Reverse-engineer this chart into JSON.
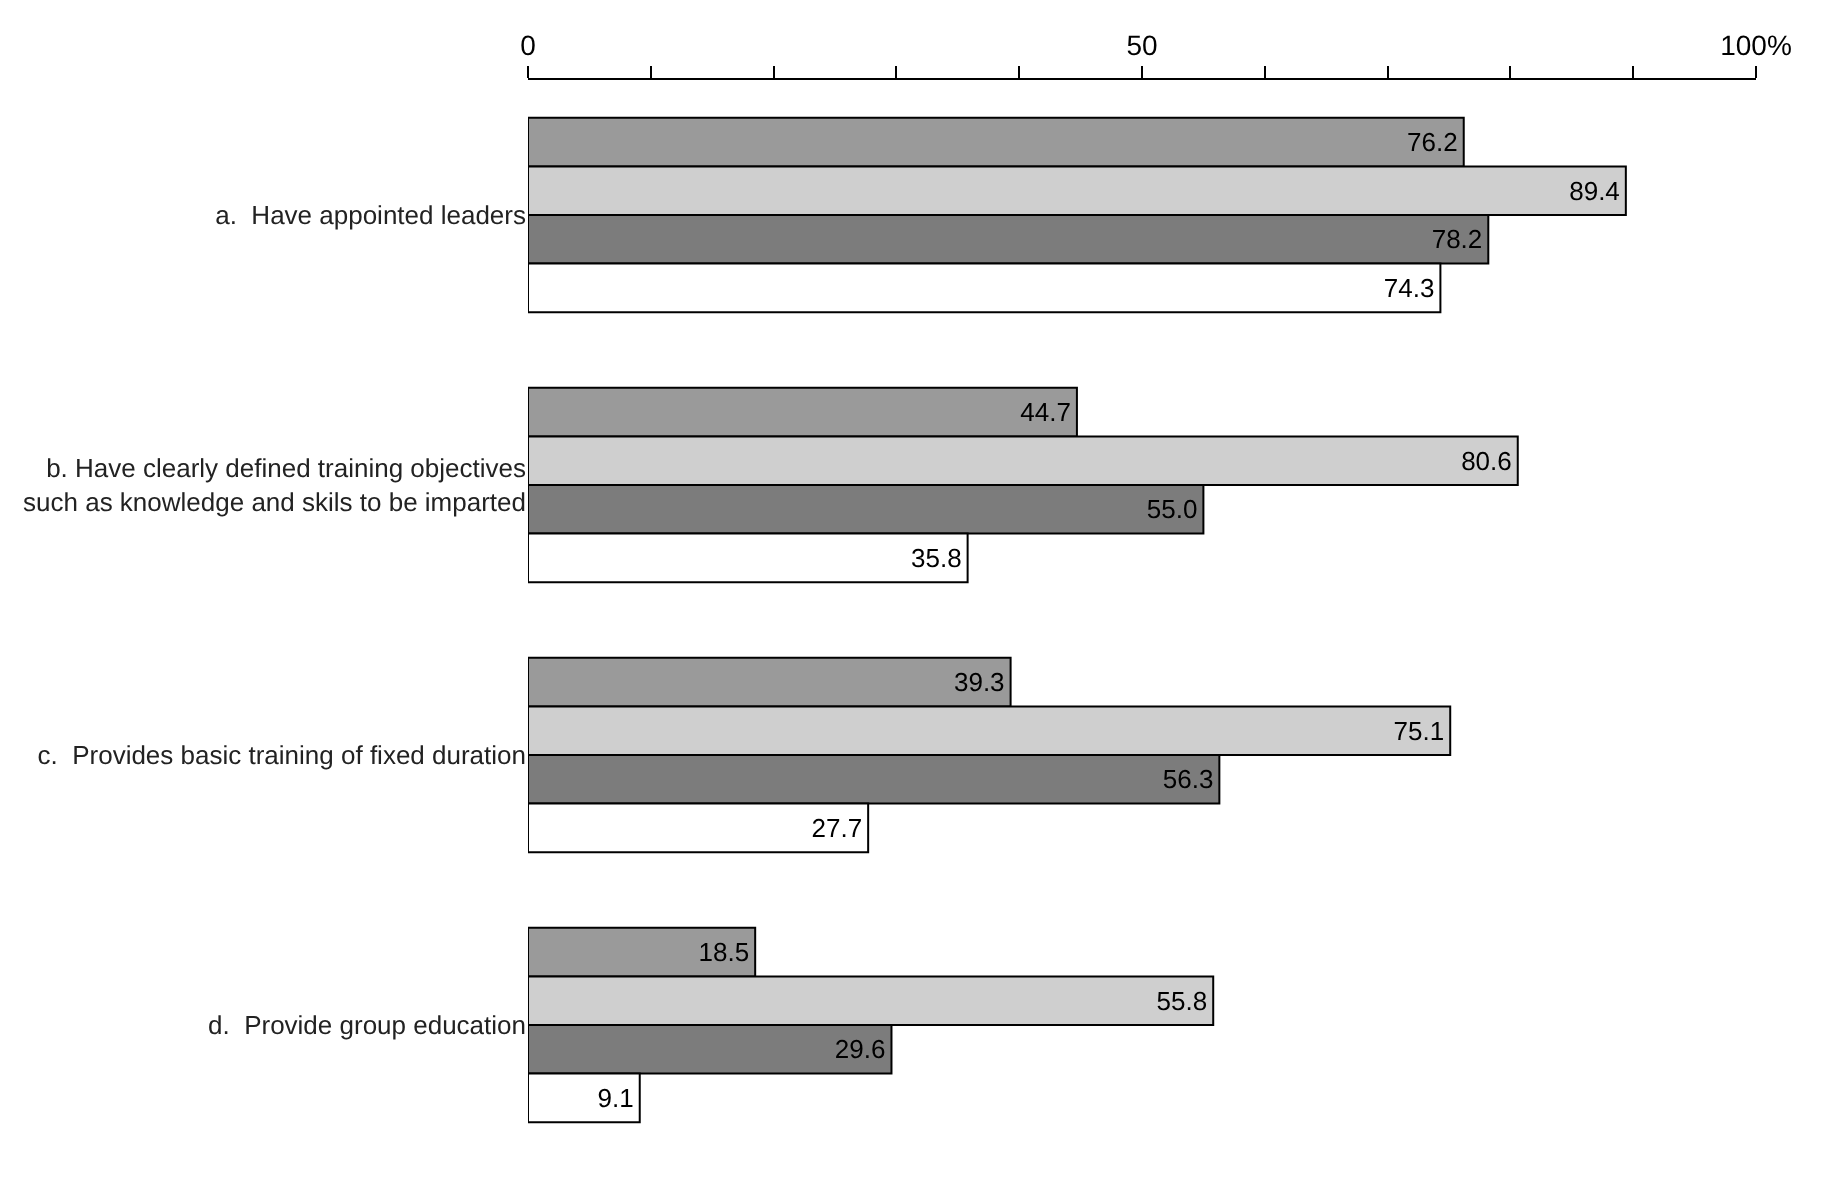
{
  "chart_data": {
    "type": "bar",
    "orientation": "horizontal",
    "categories": [
      "a.  Have appointed leaders",
      "b. Have clearly defined training objectives such as knowledge and skils to be imparted",
      "c.  Provides basic training of fixed duration",
      "d.  Provide group education"
    ],
    "series": [
      {
        "color": "#9a9a9a",
        "values": [
          76.2,
          44.7,
          39.3,
          18.5
        ],
        "value_labels": [
          "76.2",
          "44.7",
          "39.3",
          "18.5"
        ]
      },
      {
        "color": "#cfcfcf",
        "values": [
          89.4,
          80.6,
          75.1,
          55.8
        ],
        "value_labels": [
          "89.4",
          "80.6",
          "75.1",
          "55.8"
        ]
      },
      {
        "color": "#7c7c7c",
        "values": [
          78.2,
          55.0,
          56.3,
          29.6
        ],
        "value_labels": [
          "78.2",
          "55.0",
          "56.3",
          "29.6"
        ]
      },
      {
        "color": "#ffffff",
        "values": [
          74.3,
          35.8,
          27.7,
          9.1
        ],
        "value_labels": [
          "74.3",
          "35.8",
          "27.7",
          "9.1"
        ]
      }
    ],
    "xlim": [
      0,
      100
    ],
    "xticks": [
      0,
      {
        "value": 10,
        "label": null
      },
      {
        "value": 20,
        "label": null
      },
      {
        "value": 30,
        "label": null
      },
      {
        "value": 40,
        "label": null
      },
      50,
      {
        "value": 60,
        "label": null
      },
      {
        "value": 70,
        "label": null
      },
      {
        "value": 80,
        "label": null
      },
      {
        "value": 90,
        "label": null
      },
      {
        "value": 100,
        "label": "100%"
      }
    ]
  }
}
